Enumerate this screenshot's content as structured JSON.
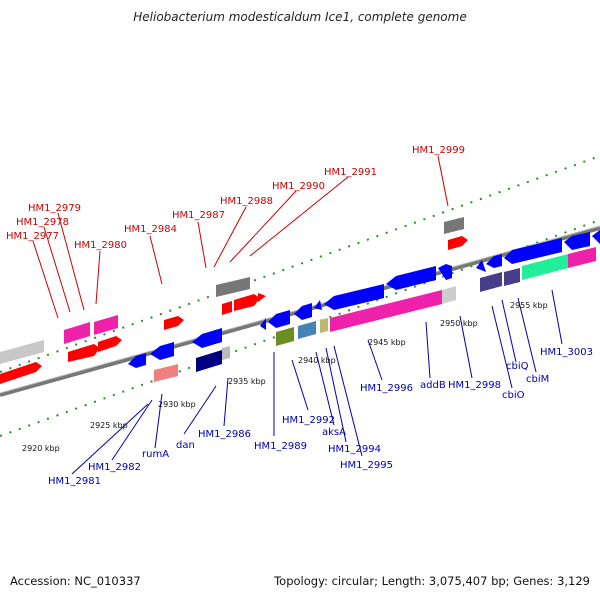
{
  "title": "Heliobacterium modesticaldum Ice1, complete genome",
  "footer": {
    "accession": "Accession: NC_010337",
    "topology": "Topology: circular; Length: 3,075,407 bp; Genes: 3,129"
  },
  "colors": {
    "forward": "#ff0000",
    "reverse": "#0000ff",
    "top_label": "#cc0000",
    "bottom_label": "#0000aa",
    "backbone": "#888888",
    "tick": "#2e8b2e"
  },
  "scale_labels": [
    "2920 kbp",
    "2925 kbp",
    "2930 kbp",
    "2935 kbp",
    "2940 kbp",
    "2945 kbp",
    "2950 kbp",
    "2955 kbp"
  ],
  "top_gene_labels": [
    "HM1_2977",
    "HM1_2978",
    "HM1_2979",
    "HM1_2980",
    "HM1_2984",
    "HM1_2987",
    "HM1_2988",
    "HM1_2990",
    "HM1_2991",
    "HM1_2999"
  ],
  "bottom_gene_labels": [
    "HM1_2981",
    "HM1_2982",
    "rumA",
    "dan",
    "HM1_2986",
    "HM1_2989",
    "HM1_2992",
    "aksA",
    "HM1_2994",
    "HM1_2995",
    "HM1_2996",
    "addB",
    "HM1_2998",
    "cbiO",
    "cbiQ",
    "cbiM",
    "HM1_3003"
  ]
}
